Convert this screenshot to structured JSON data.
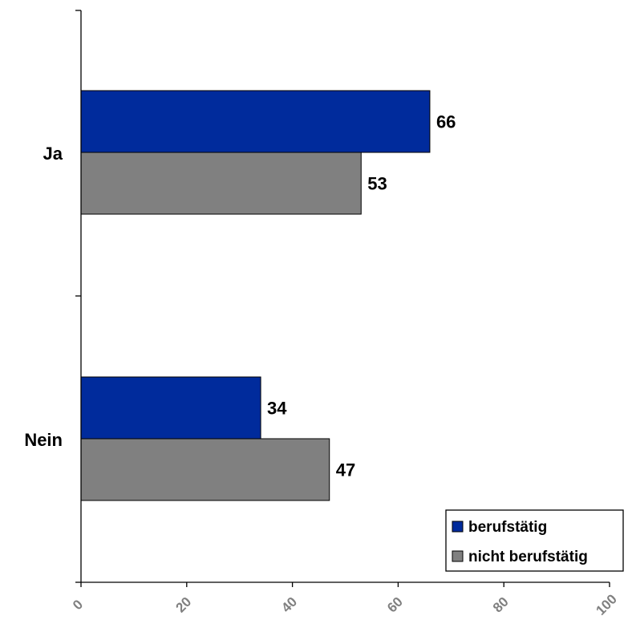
{
  "chart_data": {
    "type": "bar",
    "orientation": "horizontal",
    "categories": [
      "Ja",
      "Nein"
    ],
    "series": [
      {
        "name": "berufstätig",
        "values": [
          66,
          34
        ],
        "color": "#002b9c"
      },
      {
        "name": "nicht berufstätig",
        "values": [
          53,
          47
        ],
        "color": "#808080"
      }
    ],
    "xlim": [
      0,
      100
    ],
    "xticks": [
      "0",
      "20",
      "40",
      "60",
      "80",
      "100"
    ],
    "data_labels": [
      "66",
      "53",
      "34",
      "47"
    ],
    "legend_position": "bottom-right",
    "grid": false
  }
}
